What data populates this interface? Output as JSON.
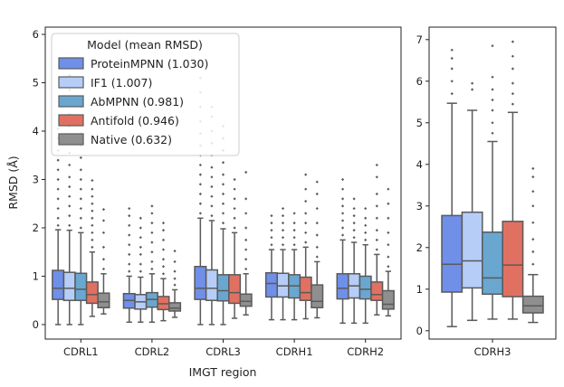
{
  "chart_data": {
    "type": "boxplot",
    "ylabel": "RMSD (Å)",
    "xlabel": "IMGT region",
    "legend": {
      "title": "Model (mean RMSD)",
      "placement": "top-left",
      "entries": [
        "ProteinMPNN (1.030)",
        "IF1 (1.007)",
        "AbMPNN (0.981)",
        "Antifold (0.946)",
        "Native (0.632)"
      ]
    },
    "series_colors": [
      "#6f8fe8",
      "#b6cdf8",
      "#6aa7d0",
      "#e07162",
      "#8f8f8f"
    ],
    "panels": [
      {
        "name": "left",
        "ylim": [
          -0.3,
          6.15
        ],
        "yticks": [
          0,
          1,
          2,
          3,
          4,
          5,
          6
        ],
        "categories": [
          "CDRL1",
          "CDRL2",
          "CDRL3",
          "CDRH1",
          "CDRH2"
        ],
        "boxes": [
          [
            {
              "whislo": 0.0,
              "q1": 0.52,
              "med": 0.75,
              "q3": 1.12,
              "whishi": 1.96,
              "fliers": [
                2.05,
                2.2,
                2.4,
                2.6,
                2.8,
                3.0,
                3.2,
                3.4,
                3.6,
                3.85,
                4.05
              ]
            },
            {
              "whislo": 0.0,
              "q1": 0.5,
              "med": 0.75,
              "q3": 1.08,
              "whishi": 1.95,
              "fliers": [
                2.05,
                2.25,
                2.45,
                2.65,
                2.85,
                3.05,
                3.3,
                3.55,
                3.8,
                4.1,
                4.35,
                4.6,
                4.85,
                5.15
              ]
            },
            {
              "whislo": 0.0,
              "q1": 0.5,
              "med": 0.73,
              "q3": 1.06,
              "whishi": 1.9,
              "fliers": [
                2.0,
                2.2,
                2.4,
                2.6,
                2.8,
                3.0,
                3.2,
                3.45,
                3.7,
                3.95,
                4.2,
                4.5
              ]
            },
            {
              "whislo": 0.17,
              "q1": 0.44,
              "med": 0.62,
              "q3": 0.88,
              "whishi": 1.5,
              "fliers": [
                1.6,
                1.75,
                1.9,
                2.05,
                2.2,
                2.35,
                2.5,
                2.65,
                2.8,
                2.98
              ]
            },
            {
              "whislo": 0.22,
              "q1": 0.35,
              "med": 0.47,
              "q3": 0.65,
              "whishi": 1.05,
              "fliers": [
                1.15,
                1.35,
                1.6,
                1.9,
                2.15,
                2.38
              ]
            }
          ],
          [
            {
              "whislo": 0.05,
              "q1": 0.34,
              "med": 0.5,
              "q3": 0.64,
              "whishi": 1.0,
              "fliers": [
                1.1,
                1.25,
                1.45,
                1.65,
                1.85,
                2.05,
                2.25,
                2.4
              ]
            },
            {
              "whislo": 0.05,
              "q1": 0.32,
              "med": 0.47,
              "q3": 0.62,
              "whishi": 0.98,
              "fliers": [
                1.1,
                1.25,
                1.45,
                1.6,
                1.8,
                2.0,
                2.2
              ]
            },
            {
              "whislo": 0.05,
              "q1": 0.36,
              "med": 0.52,
              "q3": 0.66,
              "whishi": 1.05,
              "fliers": [
                1.15,
                1.3,
                1.5,
                1.7,
                1.9,
                2.1,
                2.3,
                2.45
              ]
            },
            {
              "whislo": 0.08,
              "q1": 0.31,
              "med": 0.43,
              "q3": 0.58,
              "whishi": 0.95,
              "fliers": [
                1.05,
                1.2,
                1.35,
                1.55,
                1.75,
                1.95,
                2.1
              ]
            },
            {
              "whislo": 0.15,
              "q1": 0.28,
              "med": 0.34,
              "q3": 0.45,
              "whishi": 0.72,
              "fliers": [
                0.82,
                0.95,
                1.1,
                1.3,
                1.52
              ]
            }
          ],
          [
            {
              "whislo": 0.0,
              "q1": 0.52,
              "med": 0.75,
              "q3": 1.2,
              "whishi": 2.2,
              "fliers": [
                2.3,
                2.5,
                2.7,
                2.9,
                3.1,
                3.3,
                3.5,
                3.7,
                3.95,
                4.2,
                4.5,
                4.8,
                5.1
              ]
            },
            {
              "whislo": 0.0,
              "q1": 0.5,
              "med": 0.75,
              "q3": 1.13,
              "whishi": 2.15,
              "fliers": [
                2.25,
                2.45,
                2.65,
                2.85,
                3.05,
                3.25,
                3.5,
                3.75,
                4.0,
                4.3,
                4.5
              ]
            },
            {
              "whislo": 0.0,
              "q1": 0.49,
              "med": 0.7,
              "q3": 1.03,
              "whishi": 1.98,
              "fliers": [
                2.1,
                2.3,
                2.5,
                2.7,
                2.9,
                3.1,
                3.35,
                3.6,
                3.85,
                4.1
              ]
            },
            {
              "whislo": 0.13,
              "q1": 0.44,
              "med": 0.66,
              "q3": 1.03,
              "whishi": 1.9,
              "fliers": [
                2.0,
                2.2,
                2.4,
                2.6,
                2.8,
                3.0
              ]
            },
            {
              "whislo": 0.2,
              "q1": 0.38,
              "med": 0.48,
              "q3": 0.63,
              "whishi": 1.05,
              "fliers": [
                1.15,
                1.35,
                1.55,
                1.75,
                2.0,
                2.3,
                2.6,
                3.15
              ]
            }
          ],
          [
            {
              "whislo": 0.1,
              "q1": 0.57,
              "med": 0.85,
              "q3": 1.07,
              "whishi": 1.55,
              "fliers": [
                1.65,
                1.8,
                1.95,
                2.1,
                2.25
              ]
            },
            {
              "whislo": 0.1,
              "q1": 0.57,
              "med": 0.8,
              "q3": 1.06,
              "whishi": 1.55,
              "fliers": [
                1.65,
                1.8,
                1.95,
                2.1,
                2.25,
                2.4
              ]
            },
            {
              "whislo": 0.1,
              "q1": 0.55,
              "med": 0.8,
              "q3": 1.03,
              "whishi": 1.55,
              "fliers": [
                1.65,
                1.8,
                1.95,
                2.1,
                2.3
              ]
            },
            {
              "whislo": 0.12,
              "q1": 0.5,
              "med": 0.66,
              "q3": 0.98,
              "whishi": 1.6,
              "fliers": [
                1.7,
                1.9,
                2.1,
                2.3,
                2.55,
                2.8,
                3.1
              ]
            },
            {
              "whislo": 0.14,
              "q1": 0.35,
              "med": 0.48,
              "q3": 0.82,
              "whishi": 1.3,
              "fliers": [
                1.4,
                1.6,
                1.85,
                2.1,
                2.4,
                2.7,
                2.95
              ]
            }
          ],
          [
            {
              "whislo": 0.03,
              "q1": 0.53,
              "med": 0.75,
              "q3": 1.05,
              "whishi": 1.75,
              "fliers": [
                1.85,
                2.0,
                2.15,
                2.3,
                2.45,
                2.6,
                2.8,
                3.0
              ]
            },
            {
              "whislo": 0.03,
              "q1": 0.55,
              "med": 0.8,
              "q3": 1.05,
              "whishi": 1.7,
              "fliers": [
                1.8,
                1.95,
                2.1,
                2.25,
                2.4,
                2.6
              ]
            },
            {
              "whislo": 0.03,
              "q1": 0.53,
              "med": 0.73,
              "q3": 1.0,
              "whishi": 1.65,
              "fliers": [
                1.75,
                1.9,
                2.05,
                2.2,
                2.4
              ]
            },
            {
              "whislo": 0.2,
              "q1": 0.5,
              "med": 0.62,
              "q3": 0.88,
              "whishi": 1.45,
              "fliers": [
                1.55,
                1.75,
                1.95,
                2.2,
                2.45,
                2.7,
                3.05,
                3.3
              ]
            },
            {
              "whislo": 0.18,
              "q1": 0.32,
              "med": 0.42,
              "q3": 0.7,
              "whishi": 1.1,
              "fliers": [
                1.2,
                1.4,
                1.65,
                1.9,
                2.2,
                2.5,
                2.8
              ]
            }
          ]
        ]
      },
      {
        "name": "right",
        "ylim": [
          -0.2,
          7.3
        ],
        "yticks": [
          0,
          1,
          2,
          3,
          4,
          5,
          6,
          7
        ],
        "categories": [
          "CDRH3"
        ],
        "boxes": [
          [
            {
              "whislo": 0.1,
              "q1": 0.93,
              "med": 1.6,
              "q3": 2.77,
              "whishi": 5.47,
              "fliers": [
                5.7,
                6.0,
                6.3,
                6.55,
                6.75
              ]
            },
            {
              "whislo": 0.25,
              "q1": 1.03,
              "med": 1.68,
              "q3": 2.85,
              "whishi": 5.3,
              "fliers": [
                5.8,
                5.95
              ]
            },
            {
              "whislo": 0.28,
              "q1": 0.88,
              "med": 1.27,
              "q3": 2.37,
              "whishi": 4.55,
              "fliers": [
                4.75,
                5.0,
                5.3,
                5.55,
                5.8,
                6.1,
                6.85
              ]
            },
            {
              "whislo": 0.28,
              "q1": 0.82,
              "med": 1.58,
              "q3": 2.63,
              "whishi": 5.25,
              "fliers": [
                5.45,
                5.7,
                5.95,
                6.3,
                6.6,
                6.95
              ]
            },
            {
              "whislo": 0.2,
              "q1": 0.43,
              "med": 0.6,
              "q3": 0.83,
              "whishi": 1.35,
              "fliers": [
                1.6,
                1.9,
                2.2,
                2.6,
                3.0,
                3.35,
                3.7,
                3.9
              ]
            }
          ]
        ]
      }
    ]
  }
}
